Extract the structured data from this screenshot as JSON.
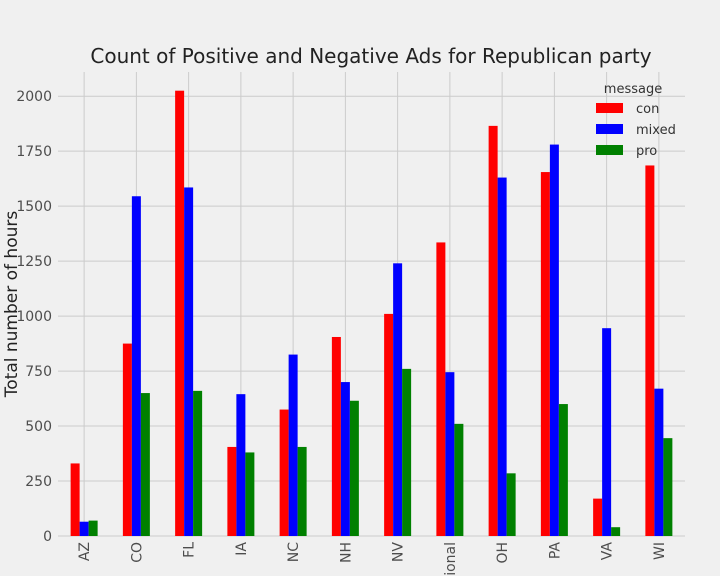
{
  "chart_data": {
    "type": "bar",
    "title": "Count of Positive and Negative Ads for Republican party",
    "xlabel": "",
    "ylabel": "Total number of hours",
    "categories": [
      "AZ",
      "CO",
      "FL",
      "IA",
      "NC",
      "NH",
      "NV",
      "tional",
      "OH",
      "PA",
      "VA",
      "WI"
    ],
    "series": [
      {
        "name": "con",
        "color": "#ff0000",
        "values": [
          330,
          875,
          2025,
          405,
          575,
          905,
          1010,
          1335,
          1865,
          1655,
          170,
          1685
        ]
      },
      {
        "name": "mixed",
        "color": "#0000ff",
        "values": [
          65,
          1545,
          1585,
          645,
          825,
          700,
          1240,
          745,
          1630,
          1780,
          945,
          670
        ]
      },
      {
        "name": "pro",
        "color": "#008000",
        "values": [
          70,
          650,
          660,
          380,
          405,
          615,
          760,
          510,
          285,
          600,
          40,
          445
        ]
      }
    ],
    "ylim": [
      0,
      2110
    ],
    "yticks": [
      0,
      250,
      500,
      750,
      1000,
      1250,
      1500,
      1750,
      2000
    ],
    "grid": true,
    "legend": {
      "title": "message",
      "placement": "top-right"
    }
  }
}
